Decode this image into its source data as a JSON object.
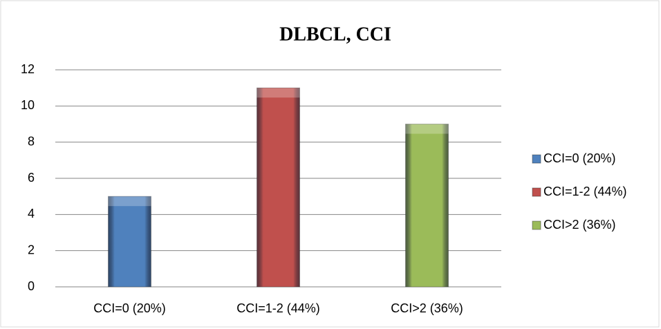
{
  "chart_data": {
    "type": "bar",
    "title": "DLBCL, CCI",
    "categories": [
      "CCI=0 (20%)",
      "CCI=1-2 (44%)",
      "CCI>2 (36%)"
    ],
    "values": [
      5,
      11,
      9
    ],
    "colors": [
      "#4f81bd",
      "#c0504d",
      "#9bbb59"
    ],
    "ylim": [
      0,
      12
    ],
    "yticks": [
      0,
      2,
      4,
      6,
      8,
      10,
      12
    ],
    "grid": true,
    "legend": "right"
  }
}
